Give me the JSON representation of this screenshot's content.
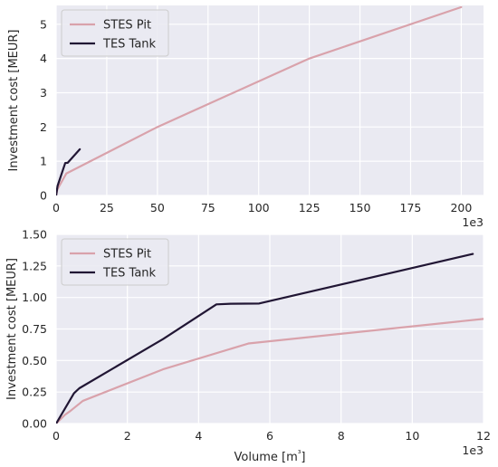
{
  "chart_data": [
    {
      "type": "line",
      "xlabel": "",
      "x_exponent_label": "1e3",
      "ylabel": "Investment cost [MEUR]",
      "xlim": [
        0,
        211
      ],
      "ylim": [
        0,
        5.55
      ],
      "xticks": [
        0,
        25,
        50,
        75,
        100,
        125,
        150,
        175,
        200
      ],
      "yticks": [
        0,
        1,
        2,
        3,
        4,
        5
      ],
      "ytick_labels": [
        "0",
        "1",
        "2",
        "3",
        "4",
        "5"
      ],
      "grid": true,
      "legend_position": "upper-left",
      "series": [
        {
          "name": "STES Pit",
          "color": "#d9a2ab",
          "x": [
            0,
            0.6,
            5,
            50,
            125,
            200
          ],
          "y": [
            0,
            0.18,
            0.64,
            2.0,
            4.0,
            5.5
          ]
        },
        {
          "name": "TES Tank",
          "color": "#211634",
          "x": [
            0,
            0.7,
            4.5,
            5.7,
            11.7
          ],
          "y": [
            0,
            0.28,
            0.95,
            0.955,
            1.35
          ]
        }
      ]
    },
    {
      "type": "line",
      "xlabel": "Volume [m³]",
      "x_exponent_label": "1e3",
      "ylabel": "Investment cost [MEUR]",
      "xlim": [
        0,
        12
      ],
      "ylim": [
        0,
        1.5
      ],
      "xticks": [
        0,
        2,
        4,
        6,
        8,
        10,
        12
      ],
      "yticks": [
        0,
        0.25,
        0.5,
        0.75,
        1.0,
        1.25,
        1.5
      ],
      "ytick_labels": [
        "0.00",
        "0.25",
        "0.50",
        "0.75",
        "1.00",
        "1.25",
        "1.50"
      ],
      "grid": true,
      "legend_position": "upper-left",
      "series": [
        {
          "name": "STES Pit",
          "color": "#d9a2ab",
          "x": [
            0,
            0.25,
            0.4,
            0.75,
            3.0,
            5.4,
            12
          ],
          "y": [
            0,
            0.07,
            0.1,
            0.18,
            0.43,
            0.635,
            0.83
          ]
        },
        {
          "name": "TES Tank",
          "color": "#211634",
          "x": [
            0,
            0.5,
            0.65,
            3.0,
            4.5,
            4.9,
            5.7,
            11.7
          ],
          "y": [
            0,
            0.24,
            0.28,
            0.67,
            0.945,
            0.95,
            0.952,
            1.345
          ]
        }
      ]
    }
  ]
}
